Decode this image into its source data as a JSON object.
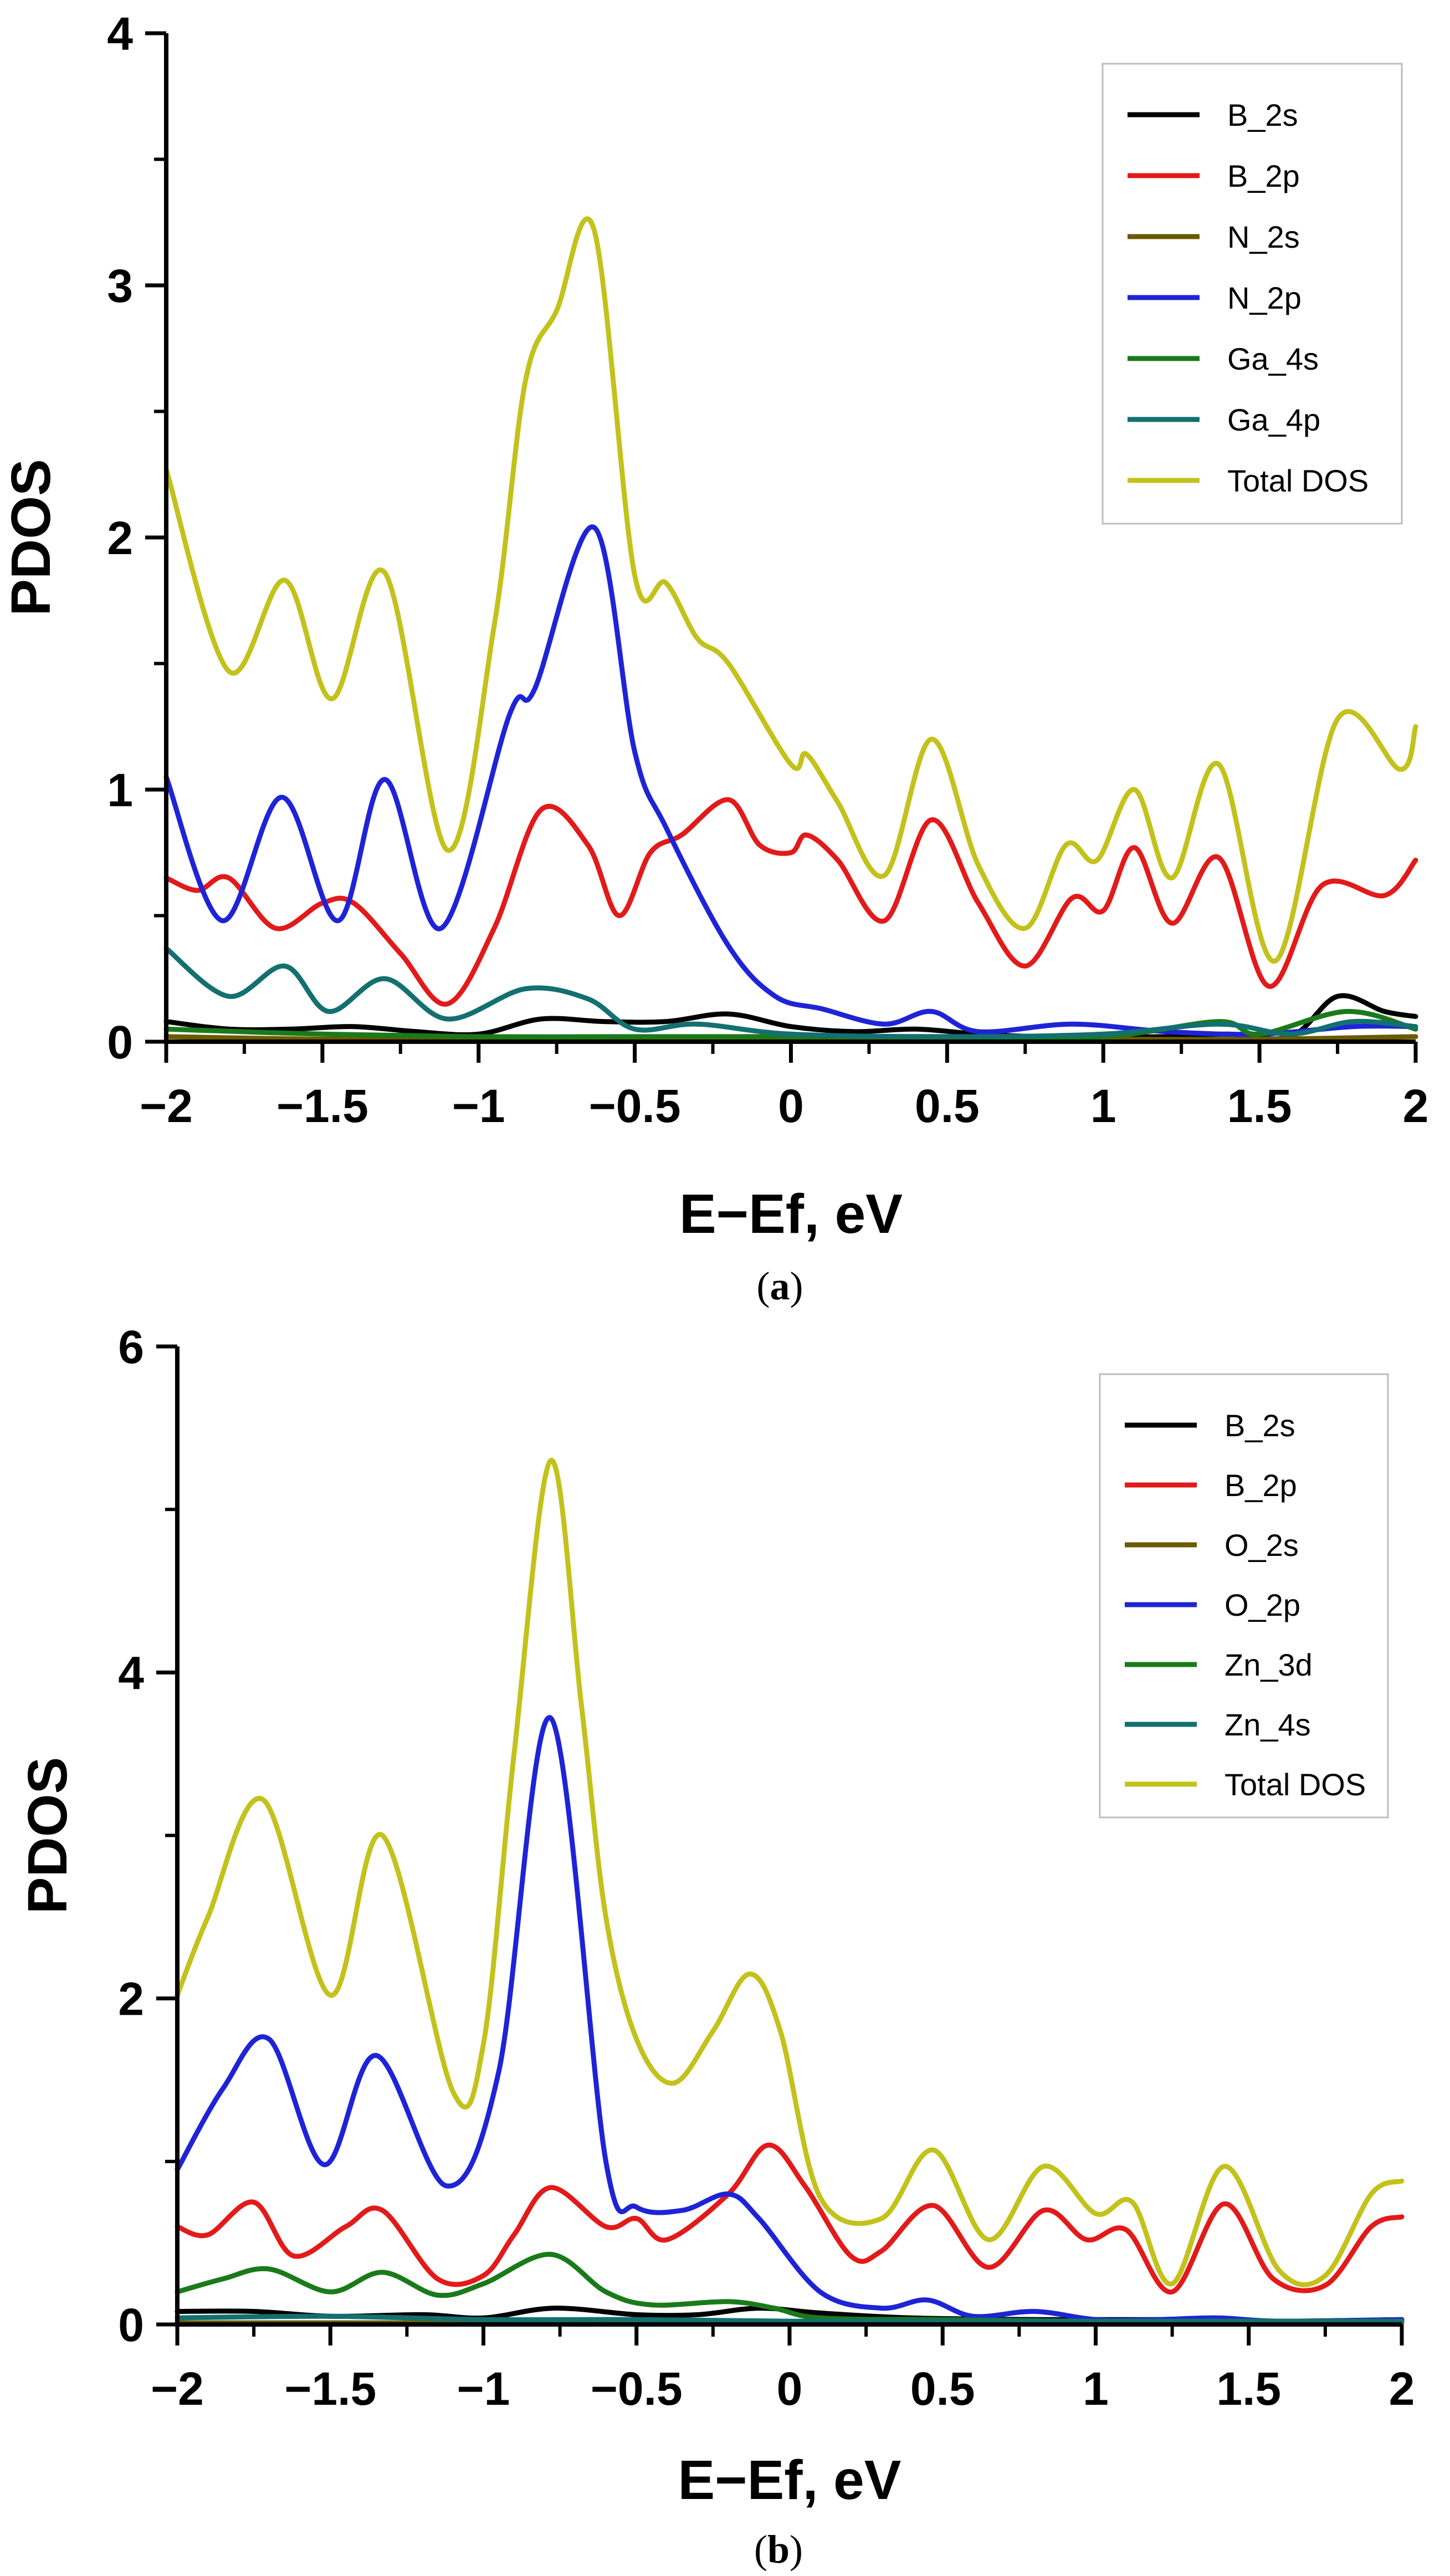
{
  "chart_data": [
    {
      "type": "line",
      "panel_label": "a",
      "xlabel": "E−Ef, eV",
      "ylabel": "PDOS",
      "xlim": [
        -2,
        2
      ],
      "ylim": [
        0,
        4
      ],
      "xticks": [
        -2,
        -1.5,
        -1,
        -0.5,
        0,
        0.5,
        1,
        1.5,
        2
      ],
      "xtick_labels": [
        "−2",
        "−1.5",
        "−1",
        "−0.5",
        "0",
        "0.5",
        "1",
        "1.5",
        "2"
      ],
      "yticks": [
        0,
        1,
        2,
        3,
        4
      ],
      "ytick_labels": [
        "0",
        "1",
        "2",
        "3",
        "4"
      ],
      "grid": false,
      "legend_position": "top-right",
      "series": [
        {
          "name": "B_2s",
          "color": "#000000",
          "x": [
            -2,
            -1.8,
            -1.6,
            -1.4,
            -1.2,
            -1.0,
            -0.8,
            -0.6,
            -0.4,
            -0.2,
            0,
            0.2,
            0.4,
            0.6,
            0.8,
            1.0,
            1.2,
            1.4,
            1.6,
            1.75,
            1.9,
            2
          ],
          "y": [
            0.08,
            0.05,
            0.05,
            0.06,
            0.04,
            0.03,
            0.09,
            0.08,
            0.08,
            0.11,
            0.06,
            0.04,
            0.05,
            0.03,
            0.02,
            0.02,
            0.02,
            0.03,
            0.02,
            0.18,
            0.12,
            0.1
          ]
        },
        {
          "name": "B_2p",
          "color": "#e31a1a",
          "x": [
            -2,
            -1.9,
            -1.8,
            -1.65,
            -1.5,
            -1.4,
            -1.25,
            -1.1,
            -0.95,
            -0.8,
            -0.65,
            -0.55,
            -0.45,
            -0.35,
            -0.2,
            -0.1,
            0,
            0.05,
            0.15,
            0.3,
            0.45,
            0.6,
            0.75,
            0.9,
            1.0,
            1.1,
            1.22,
            1.37,
            1.53,
            1.7,
            1.9,
            2
          ],
          "y": [
            0.65,
            0.6,
            0.65,
            0.45,
            0.55,
            0.55,
            0.35,
            0.15,
            0.45,
            0.92,
            0.78,
            0.5,
            0.75,
            0.82,
            0.96,
            0.78,
            0.75,
            0.82,
            0.72,
            0.48,
            0.88,
            0.55,
            0.3,
            0.57,
            0.52,
            0.77,
            0.47,
            0.73,
            0.22,
            0.62,
            0.58,
            0.72
          ]
        },
        {
          "name": "N_2s",
          "color": "#6b5a00",
          "x": [
            -2,
            -1.5,
            -1.0,
            -0.5,
            0,
            0.5,
            1.0,
            1.5,
            2
          ],
          "y": [
            0.02,
            0.01,
            0.01,
            0.01,
            0.01,
            0.01,
            0.01,
            0.01,
            0.02
          ]
        },
        {
          "name": "N_2p",
          "color": "#1e24d6",
          "x": [
            -2,
            -1.82,
            -1.63,
            -1.45,
            -1.3,
            -1.12,
            -0.9,
            -0.82,
            -0.63,
            -0.5,
            -0.4,
            -0.2,
            -0.05,
            0.1,
            0.3,
            0.45,
            0.6,
            0.9,
            1.2,
            1.5,
            1.8,
            2
          ],
          "y": [
            1.05,
            0.48,
            0.97,
            0.48,
            1.04,
            0.45,
            1.3,
            1.4,
            2.04,
            1.15,
            0.85,
            0.38,
            0.18,
            0.13,
            0.07,
            0.12,
            0.04,
            0.07,
            0.04,
            0.03,
            0.06,
            0.06
          ]
        },
        {
          "name": "Ga_4s",
          "color": "#1a7a1a",
          "x": [
            -2,
            -1.5,
            -1.0,
            -0.5,
            0,
            0.5,
            1.0,
            1.37,
            1.5,
            1.78,
            2
          ],
          "y": [
            0.05,
            0.03,
            0.02,
            0.02,
            0.02,
            0.02,
            0.02,
            0.08,
            0.03,
            0.12,
            0.05
          ]
        },
        {
          "name": "Ga_4p",
          "color": "#137070",
          "x": [
            -2,
            -1.8,
            -1.62,
            -1.48,
            -1.3,
            -1.1,
            -0.85,
            -0.65,
            -0.5,
            -0.3,
            0,
            0.5,
            1.0,
            1.37,
            1.6,
            1.8,
            2
          ],
          "y": [
            0.37,
            0.18,
            0.3,
            0.12,
            0.25,
            0.09,
            0.21,
            0.17,
            0.05,
            0.07,
            0.03,
            0.02,
            0.03,
            0.07,
            0.03,
            0.08,
            0.06
          ]
        },
        {
          "name": "Total DOS",
          "color": "#c3c21c",
          "x": [
            -2,
            -1.8,
            -1.62,
            -1.47,
            -1.3,
            -1.1,
            -0.95,
            -0.85,
            -0.75,
            -0.63,
            -0.5,
            -0.4,
            -0.3,
            -0.2,
            0,
            0.05,
            0.15,
            0.3,
            0.45,
            0.6,
            0.75,
            0.88,
            0.98,
            1.1,
            1.22,
            1.37,
            1.55,
            1.75,
            1.95,
            2
          ],
          "y": [
            2.27,
            1.47,
            1.83,
            1.36,
            1.86,
            0.76,
            1.65,
            2.62,
            2.9,
            3.22,
            1.85,
            1.82,
            1.6,
            1.5,
            1.1,
            1.14,
            0.95,
            0.66,
            1.2,
            0.7,
            0.45,
            0.78,
            0.72,
            1.0,
            0.65,
            1.1,
            0.32,
            1.28,
            1.08,
            1.25
          ]
        }
      ]
    },
    {
      "type": "line",
      "panel_label": "b",
      "xlabel": "E−Ef, eV",
      "ylabel": "PDOS",
      "xlim": [
        -2,
        2
      ],
      "ylim": [
        0,
        6
      ],
      "xticks": [
        -2,
        -1.5,
        -1,
        -0.5,
        0,
        0.5,
        1,
        1.5,
        2
      ],
      "xtick_labels": [
        "−2",
        "−1.5",
        "−1",
        "−0.5",
        "0",
        "0.5",
        "1",
        "1.5",
        "2"
      ],
      "yticks": [
        0,
        2,
        4,
        6
      ],
      "ytick_labels": [
        "0",
        "2",
        "4",
        "6"
      ],
      "grid": false,
      "legend_position": "top-right",
      "series": [
        {
          "name": "B_2s",
          "color": "#000000",
          "x": [
            -2,
            -1.75,
            -1.5,
            -1.2,
            -1.0,
            -0.77,
            -0.5,
            -0.3,
            -0.1,
            0.1,
            0.4,
            0.8,
            1.2,
            1.6,
            2
          ],
          "y": [
            0.08,
            0.08,
            0.05,
            0.06,
            0.04,
            0.1,
            0.06,
            0.06,
            0.1,
            0.07,
            0.04,
            0.03,
            0.03,
            0.02,
            0.03
          ]
        },
        {
          "name": "B_2p",
          "color": "#e31a1a",
          "x": [
            -2,
            -1.9,
            -1.75,
            -1.62,
            -1.45,
            -1.33,
            -1.15,
            -1.0,
            -0.9,
            -0.78,
            -0.6,
            -0.5,
            -0.4,
            -0.2,
            -0.07,
            0.05,
            0.2,
            0.3,
            0.47,
            0.65,
            0.83,
            0.97,
            1.1,
            1.25,
            1.42,
            1.58,
            1.75,
            1.9,
            2
          ],
          "y": [
            0.6,
            0.55,
            0.75,
            0.42,
            0.6,
            0.7,
            0.28,
            0.3,
            0.55,
            0.84,
            0.6,
            0.65,
            0.52,
            0.8,
            1.1,
            0.85,
            0.42,
            0.45,
            0.73,
            0.35,
            0.7,
            0.52,
            0.58,
            0.2,
            0.74,
            0.28,
            0.24,
            0.6,
            0.66
          ]
        },
        {
          "name": "O_2s",
          "color": "#6b5a00",
          "x": [
            -2,
            -1.5,
            -1.0,
            -0.5,
            0,
            0.5,
            1.0,
            1.5,
            2
          ],
          "y": [
            0.01,
            0.01,
            0.01,
            0.01,
            0.01,
            0.01,
            0.01,
            0.01,
            0.01
          ]
        },
        {
          "name": "O_2p",
          "color": "#1e24d6",
          "x": [
            -2,
            -1.85,
            -1.7,
            -1.52,
            -1.35,
            -1.12,
            -0.95,
            -0.78,
            -0.6,
            -0.5,
            -0.35,
            -0.2,
            -0.1,
            0.1,
            0.3,
            0.45,
            0.6,
            0.8,
            1.0,
            1.2,
            1.4,
            1.6,
            2
          ],
          "y": [
            0.95,
            1.45,
            1.75,
            0.98,
            1.65,
            0.85,
            1.55,
            3.72,
            1.0,
            0.72,
            0.7,
            0.8,
            0.65,
            0.2,
            0.1,
            0.15,
            0.05,
            0.08,
            0.03,
            0.03,
            0.04,
            0.02,
            0.03
          ]
        },
        {
          "name": "Zn_3d",
          "color": "#1a7a1a",
          "x": [
            -2,
            -1.85,
            -1.7,
            -1.5,
            -1.33,
            -1.15,
            -1.0,
            -0.78,
            -0.6,
            -0.45,
            -0.2,
            -0.05,
            0.1,
            0.5,
            1.0,
            1.5,
            2
          ],
          "y": [
            0.2,
            0.28,
            0.34,
            0.2,
            0.32,
            0.18,
            0.25,
            0.43,
            0.2,
            0.12,
            0.14,
            0.1,
            0.04,
            0.03,
            0.02,
            0.02,
            0.02
          ]
        },
        {
          "name": "Zn_4s",
          "color": "#137070",
          "x": [
            -2,
            -1.5,
            -1.0,
            -0.5,
            0,
            0.5,
            1.0,
            1.5,
            2
          ],
          "y": [
            0.04,
            0.05,
            0.03,
            0.03,
            0.02,
            0.02,
            0.02,
            0.02,
            0.02
          ]
        },
        {
          "name": "Total DOS",
          "color": "#c3c21c",
          "x": [
            -2,
            -1.9,
            -1.72,
            -1.5,
            -1.33,
            -1.1,
            -1.0,
            -0.9,
            -0.78,
            -0.68,
            -0.6,
            -0.5,
            -0.38,
            -0.25,
            -0.13,
            -0.03,
            0.1,
            0.3,
            0.47,
            0.65,
            0.83,
            1.0,
            1.12,
            1.25,
            1.42,
            1.6,
            1.75,
            1.9,
            2
          ],
          "y": [
            2.02,
            2.5,
            3.22,
            2.02,
            3.0,
            1.43,
            1.72,
            3.5,
            5.3,
            3.8,
            2.5,
            1.75,
            1.48,
            1.8,
            2.15,
            1.8,
            0.78,
            0.65,
            1.07,
            0.52,
            0.97,
            0.68,
            0.75,
            0.25,
            0.97,
            0.33,
            0.3,
            0.8,
            0.88
          ]
        }
      ]
    }
  ]
}
